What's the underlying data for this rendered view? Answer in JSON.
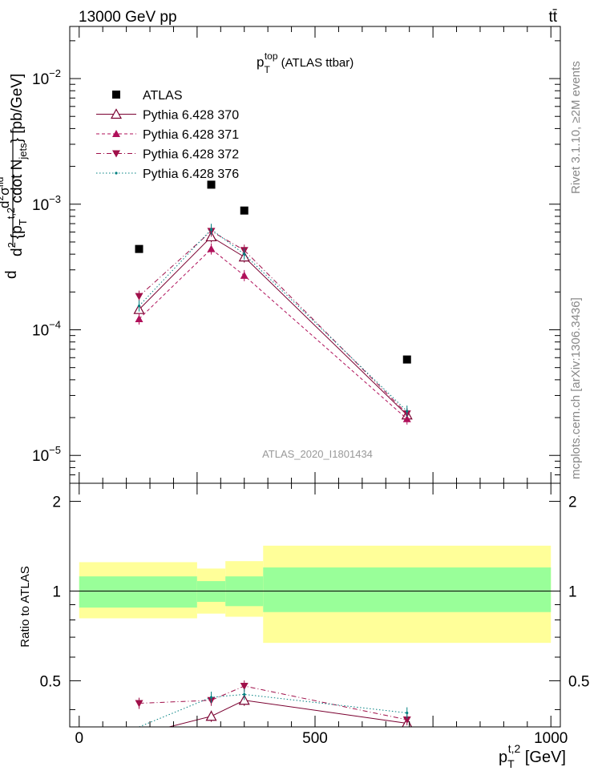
{
  "header": {
    "energy_label": "13000 GeV pp",
    "process_label": "tt̄"
  },
  "side_labels": {
    "rivet": "Rivet 3.1.10, ≥2M events",
    "mcplots": "mcplots.cern.ch [arXiv:1306.3436]"
  },
  "analysis_id": "ATLAS_2020_I1801434",
  "chart_data": [
    {
      "type": "scatter",
      "title": "p_T^top (ATLAS ttbar)",
      "title_parts": {
        "main": "p",
        "sub": "T",
        "sup": "top",
        "suffix": " (ATLAS ttbar)"
      },
      "ylabel": "d²σ^fid / d² {p_T^{t,2} cdot N_jets} [pb/GeV]",
      "ylabel_parts": {
        "d_top": "d",
        "frac_top": "d",
        "sup_top": "2",
        "sigma": "σ",
        "fid": "fid",
        "paren_open": "{",
        "pt": "p",
        "pt_sub": "T",
        "pt_sup": "t,2",
        "cdot": " cdot N",
        "jets": "jets",
        "close": "} [pb/GeV]",
        "d_bottom": "d",
        "sup_bottom": "2"
      },
      "yscale": "log",
      "ylim": [
        6e-06,
        0.026
      ],
      "xlim": [
        -20,
        1020
      ],
      "y_tick_labels": [
        {
          "value": 1e-05,
          "base": "10",
          "exp": "−5"
        },
        {
          "value": 0.0001,
          "base": "10",
          "exp": "−4"
        },
        {
          "value": 0.001,
          "base": "10",
          "exp": "−3"
        },
        {
          "value": 0.01,
          "base": "10",
          "exp": "−2"
        }
      ],
      "legend_position": "top-left",
      "series": [
        {
          "name": "ATLAS",
          "color": "#000000",
          "marker": "square",
          "line": "none",
          "x": [
            127,
            280,
            350,
            695
          ],
          "y": [
            0.00044,
            0.00143,
            0.00089,
            5.8e-05
          ]
        },
        {
          "name": "Pythia 6.428 370",
          "color": "#7a0030",
          "marker": "triangle-up-open",
          "line": "solid",
          "x": [
            127,
            280,
            350,
            695
          ],
          "y": [
            0.000145,
            0.00055,
            0.00038,
            2.1e-05
          ]
        },
        {
          "name": "Pythia 6.428 371",
          "color": "#b0105a",
          "marker": "triangle-up",
          "line": "dashed",
          "x": [
            127,
            280,
            350,
            695
          ],
          "y": [
            0.000122,
            0.00044,
            0.00027,
            1.95e-05
          ]
        },
        {
          "name": "Pythia 6.428 372",
          "color": "#a0104a",
          "marker": "triangle-down",
          "line": "dashdot",
          "x": [
            127,
            280,
            350,
            695
          ],
          "y": [
            0.000185,
            0.00061,
            0.00043,
            2.15e-05
          ]
        },
        {
          "name": "Pythia 6.428 376",
          "color": "#008080",
          "marker": "dot",
          "line": "dotted",
          "x": [
            127,
            280,
            350,
            695
          ],
          "y": [
            0.000155,
            0.00063,
            0.0004,
            2.25e-05
          ]
        }
      ]
    },
    {
      "type": "area",
      "ylabel": "Ratio to ATLAS",
      "xlabel": "p_T^{t,2} [GeV]",
      "xlabel_parts": {
        "main": "p",
        "sub": "T",
        "sup": "t,2",
        "suffix": " [GeV]"
      },
      "xlim": [
        -20,
        1020
      ],
      "ylim": [
        0.35,
        2.3
      ],
      "x_tick_labels": [
        "0",
        "500",
        "1000"
      ],
      "y_tick_labels": [
        "0.5",
        "1",
        "2"
      ],
      "bands": [
        {
          "x0": 0,
          "x1": 250,
          "g": [
            0.88,
            1.12
          ],
          "y": [
            0.81,
            1.25
          ]
        },
        {
          "x0": 250,
          "x1": 310,
          "g": [
            0.92,
            1.08
          ],
          "y": [
            0.84,
            1.19
          ]
        },
        {
          "x0": 310,
          "x1": 390,
          "g": [
            0.89,
            1.12
          ],
          "y": [
            0.82,
            1.26
          ]
        },
        {
          "x0": 390,
          "x1": 1000,
          "g": [
            0.85,
            1.2
          ],
          "y": [
            0.67,
            1.42
          ]
        }
      ],
      "ratio_series": [
        {
          "name": "Pythia 6.428 370",
          "y": [
            0.33,
            0.38,
            0.43,
            0.36
          ]
        },
        {
          "name": "Pythia 6.428 371",
          "y": [
            0.28,
            0.31,
            0.3,
            0.34
          ]
        },
        {
          "name": "Pythia 6.428 372",
          "y": [
            0.42,
            0.43,
            0.48,
            0.37
          ]
        },
        {
          "name": "Pythia 6.428 376",
          "y": [
            0.35,
            0.44,
            0.45,
            0.39
          ]
        }
      ]
    }
  ]
}
